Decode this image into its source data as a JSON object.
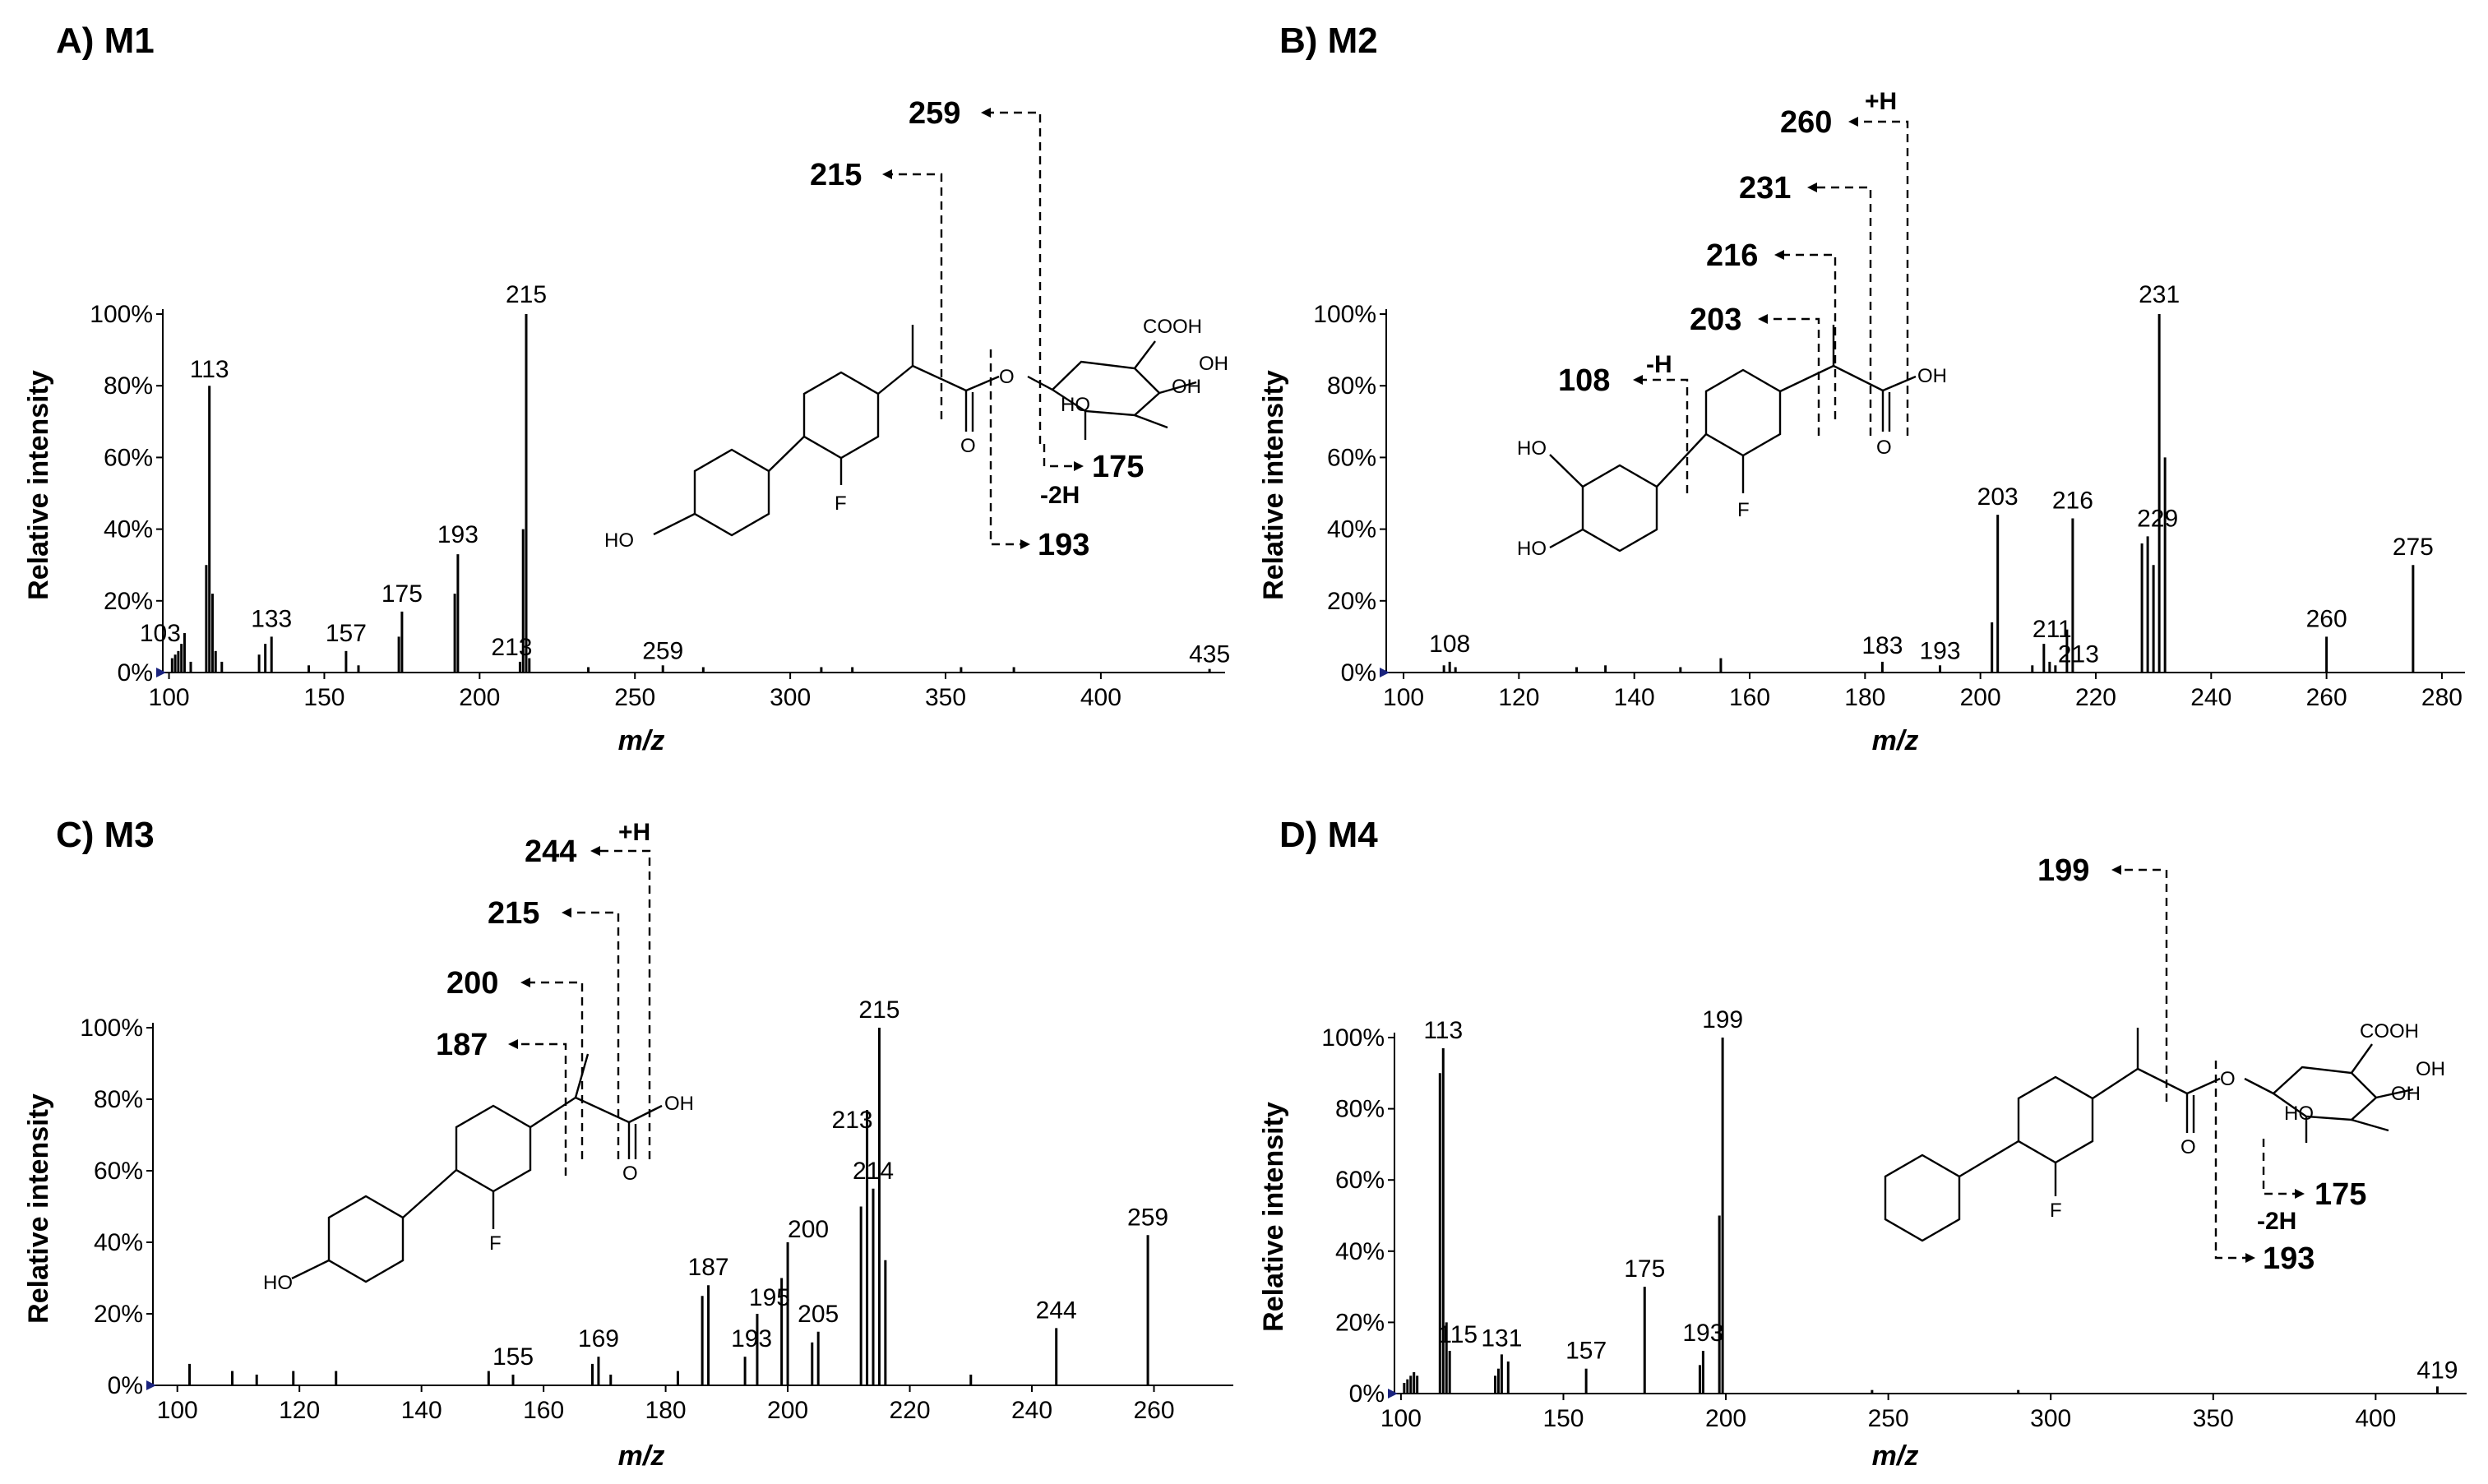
{
  "chart_data": [
    {
      "type": "bar",
      "title": "A) M1",
      "xlabel": "m/z",
      "ylabel": "Relative intensity",
      "xlim": [
        98,
        440
      ],
      "ylim": [
        0,
        100
      ],
      "xticks": [
        100,
        150,
        200,
        250,
        300,
        350,
        400
      ],
      "yticks": [
        "0%",
        "20%",
        "40%",
        "60%",
        "80%",
        "100%"
      ],
      "peaks": [
        {
          "mz": 101,
          "intensity": 4
        },
        {
          "mz": 102,
          "intensity": 5
        },
        {
          "mz": 103,
          "intensity": 6
        },
        {
          "mz": 104,
          "intensity": 8
        },
        {
          "mz": 105,
          "intensity": 11
        },
        {
          "mz": 107,
          "intensity": 3
        },
        {
          "mz": 112,
          "intensity": 30
        },
        {
          "mz": 113,
          "intensity": 80
        },
        {
          "mz": 114,
          "intensity": 22
        },
        {
          "mz": 115,
          "intensity": 6
        },
        {
          "mz": 117,
          "intensity": 3
        },
        {
          "mz": 129,
          "intensity": 5
        },
        {
          "mz": 131,
          "intensity": 8
        },
        {
          "mz": 133,
          "intensity": 10
        },
        {
          "mz": 145,
          "intensity": 2
        },
        {
          "mz": 157,
          "intensity": 6
        },
        {
          "mz": 161,
          "intensity": 2
        },
        {
          "mz": 174,
          "intensity": 10
        },
        {
          "mz": 175,
          "intensity": 17
        },
        {
          "mz": 192,
          "intensity": 22
        },
        {
          "mz": 193,
          "intensity": 33
        },
        {
          "mz": 213,
          "intensity": 3
        },
        {
          "mz": 214,
          "intensity": 40
        },
        {
          "mz": 215,
          "intensity": 100
        },
        {
          "mz": 216,
          "intensity": 4
        },
        {
          "mz": 235,
          "intensity": 1.5
        },
        {
          "mz": 259,
          "intensity": 2
        },
        {
          "mz": 272,
          "intensity": 1.5
        },
        {
          "mz": 310,
          "intensity": 1.5
        },
        {
          "mz": 320,
          "intensity": 1.5
        },
        {
          "mz": 355,
          "intensity": 1.5
        },
        {
          "mz": 372,
          "intensity": 1.5
        },
        {
          "mz": 435,
          "intensity": 1
        }
      ],
      "peak_labels": [
        {
          "text": "113",
          "mz": 113,
          "intensity": 80
        },
        {
          "text": "103",
          "mz": 103,
          "intensity": 6
        },
        {
          "text": "133",
          "mz": 133,
          "intensity": 10
        },
        {
          "text": "157",
          "mz": 157,
          "intensity": 6
        },
        {
          "text": "175",
          "mz": 175,
          "intensity": 17
        },
        {
          "text": "193",
          "mz": 193,
          "intensity": 33
        },
        {
          "text": "213",
          "mz": 213,
          "intensity": 3
        },
        {
          "text": "215",
          "mz": 215,
          "intensity": 100
        },
        {
          "text": "259",
          "mz": 259,
          "intensity": 2
        },
        {
          "text": "435",
          "mz": 435,
          "intensity": 1
        }
      ],
      "fragment_labels": [
        "259",
        "215",
        "175",
        "193"
      ],
      "fragment_notes": [
        "-2H"
      ],
      "structure_labels": [
        "HO",
        "F",
        "O",
        "O",
        "COOH",
        "OH",
        "OH",
        "HO"
      ]
    },
    {
      "type": "bar",
      "title": "B) M2",
      "xlabel": "m/z",
      "ylabel": "Relative intensity",
      "xlim": [
        97,
        284
      ],
      "ylim": [
        0,
        100
      ],
      "xticks": [
        100,
        120,
        140,
        160,
        180,
        200,
        220,
        240,
        260,
        280
      ],
      "yticks": [
        "0%",
        "20%",
        "40%",
        "60%",
        "80%",
        "100%"
      ],
      "peaks": [
        {
          "mz": 107,
          "intensity": 2
        },
        {
          "mz": 108,
          "intensity": 3
        },
        {
          "mz": 109,
          "intensity": 1.5
        },
        {
          "mz": 130,
          "intensity": 1.5
        },
        {
          "mz": 135,
          "intensity": 2
        },
        {
          "mz": 148,
          "intensity": 1.5
        },
        {
          "mz": 155,
          "intensity": 4
        },
        {
          "mz": 183,
          "intensity": 3
        },
        {
          "mz": 193,
          "intensity": 2
        },
        {
          "mz": 202,
          "intensity": 14
        },
        {
          "mz": 203,
          "intensity": 44
        },
        {
          "mz": 209,
          "intensity": 2
        },
        {
          "mz": 211,
          "intensity": 8
        },
        {
          "mz": 212,
          "intensity": 3
        },
        {
          "mz": 213,
          "intensity": 2
        },
        {
          "mz": 215,
          "intensity": 12
        },
        {
          "mz": 216,
          "intensity": 43
        },
        {
          "mz": 228,
          "intensity": 36
        },
        {
          "mz": 229,
          "intensity": 38
        },
        {
          "mz": 230,
          "intensity": 30
        },
        {
          "mz": 231,
          "intensity": 100
        },
        {
          "mz": 232,
          "intensity": 60
        },
        {
          "mz": 260,
          "intensity": 10
        },
        {
          "mz": 275,
          "intensity": 30
        }
      ],
      "peak_labels": [
        {
          "text": "108",
          "mz": 108,
          "intensity": 3
        },
        {
          "text": "183",
          "mz": 183,
          "intensity": 3
        },
        {
          "text": "193",
          "mz": 193,
          "intensity": 2
        },
        {
          "text": "203",
          "mz": 203,
          "intensity": 44
        },
        {
          "text": "211",
          "mz": 211,
          "intensity": 8
        },
        {
          "text": "213",
          "mz": 213,
          "intensity": 2
        },
        {
          "text": "216",
          "mz": 216,
          "intensity": 43
        },
        {
          "text": "229",
          "mz": 229,
          "intensity": 38
        },
        {
          "text": "231",
          "mz": 231,
          "intensity": 100
        },
        {
          "text": "260",
          "mz": 260,
          "intensity": 10
        },
        {
          "text": "275",
          "mz": 275,
          "intensity": 30
        }
      ],
      "fragment_labels": [
        "260",
        "231",
        "216",
        "203",
        "108"
      ],
      "fragment_notes": [
        "+H",
        "-H"
      ],
      "structure_labels": [
        "HO",
        "HO",
        "F",
        "OH",
        "O"
      ]
    },
    {
      "type": "bar",
      "title": "C) M3",
      "xlabel": "m/z",
      "ylabel": "Relative intensity",
      "xlim": [
        96,
        273
      ],
      "ylim": [
        0,
        100
      ],
      "xticks": [
        100,
        120,
        140,
        160,
        180,
        200,
        220,
        240,
        260
      ],
      "yticks": [
        "0%",
        "20%",
        "40%",
        "60%",
        "80%",
        "100%"
      ],
      "peaks": [
        {
          "mz": 102,
          "intensity": 6
        },
        {
          "mz": 109,
          "intensity": 4
        },
        {
          "mz": 113,
          "intensity": 3
        },
        {
          "mz": 119,
          "intensity": 4
        },
        {
          "mz": 126,
          "intensity": 4
        },
        {
          "mz": 151,
          "intensity": 4
        },
        {
          "mz": 155,
          "intensity": 3
        },
        {
          "mz": 168,
          "intensity": 6
        },
        {
          "mz": 169,
          "intensity": 8
        },
        {
          "mz": 171,
          "intensity": 3
        },
        {
          "mz": 182,
          "intensity": 4
        },
        {
          "mz": 186,
          "intensity": 25
        },
        {
          "mz": 187,
          "intensity": 28
        },
        {
          "mz": 193,
          "intensity": 8
        },
        {
          "mz": 195,
          "intensity": 20
        },
        {
          "mz": 199,
          "intensity": 30
        },
        {
          "mz": 200,
          "intensity": 40
        },
        {
          "mz": 204,
          "intensity": 12
        },
        {
          "mz": 205,
          "intensity": 15
        },
        {
          "mz": 212,
          "intensity": 50
        },
        {
          "mz": 213,
          "intensity": 77
        },
        {
          "mz": 214,
          "intensity": 55
        },
        {
          "mz": 215,
          "intensity": 100
        },
        {
          "mz": 216,
          "intensity": 35
        },
        {
          "mz": 230,
          "intensity": 3
        },
        {
          "mz": 244,
          "intensity": 16
        },
        {
          "mz": 259,
          "intensity": 42
        }
      ],
      "peak_labels": [
        {
          "text": "155",
          "mz": 155,
          "intensity": 3
        },
        {
          "text": "169",
          "mz": 169,
          "intensity": 8
        },
        {
          "text": "187",
          "mz": 187,
          "intensity": 28
        },
        {
          "text": "193",
          "mz": 193,
          "intensity": 8
        },
        {
          "text": "195",
          "mz": 195,
          "intensity": 20
        },
        {
          "text": "200",
          "mz": 200,
          "intensity": 40
        },
        {
          "text": "205",
          "mz": 205,
          "intensity": 15
        },
        {
          "text": "213",
          "mz": 213,
          "intensity": 77
        },
        {
          "text": "214",
          "mz": 214,
          "intensity": 55
        },
        {
          "text": "215",
          "mz": 215,
          "intensity": 100
        },
        {
          "text": "244",
          "mz": 244,
          "intensity": 16
        },
        {
          "text": "259",
          "mz": 259,
          "intensity": 42
        }
      ],
      "fragment_labels": [
        "244",
        "215",
        "200",
        "187"
      ],
      "fragment_notes": [
        "+H"
      ],
      "structure_labels": [
        "HO",
        "F",
        "OH",
        "O"
      ]
    },
    {
      "type": "bar",
      "title": "D) M4",
      "xlabel": "m/z",
      "ylabel": "Relative intensity",
      "xlim": [
        98,
        428
      ],
      "ylim": [
        0,
        100
      ],
      "xticks": [
        100,
        150,
        200,
        250,
        300,
        350,
        400
      ],
      "yticks": [
        "0%",
        "20%",
        "40%",
        "60%",
        "80%",
        "100%"
      ],
      "peaks": [
        {
          "mz": 101,
          "intensity": 3
        },
        {
          "mz": 102,
          "intensity": 4
        },
        {
          "mz": 103,
          "intensity": 5
        },
        {
          "mz": 104,
          "intensity": 6
        },
        {
          "mz": 105,
          "intensity": 5
        },
        {
          "mz": 112,
          "intensity": 90
        },
        {
          "mz": 113,
          "intensity": 97
        },
        {
          "mz": 114,
          "intensity": 20
        },
        {
          "mz": 115,
          "intensity": 12
        },
        {
          "mz": 129,
          "intensity": 5
        },
        {
          "mz": 130,
          "intensity": 7
        },
        {
          "mz": 131,
          "intensity": 11
        },
        {
          "mz": 133,
          "intensity": 9
        },
        {
          "mz": 157,
          "intensity": 7
        },
        {
          "mz": 175,
          "intensity": 30
        },
        {
          "mz": 192,
          "intensity": 8
        },
        {
          "mz": 193,
          "intensity": 12
        },
        {
          "mz": 198,
          "intensity": 50
        },
        {
          "mz": 199,
          "intensity": 100
        },
        {
          "mz": 245,
          "intensity": 1
        },
        {
          "mz": 290,
          "intensity": 1
        },
        {
          "mz": 419,
          "intensity": 2
        }
      ],
      "peak_labels": [
        {
          "text": "113",
          "mz": 113,
          "intensity": 97
        },
        {
          "text": "115",
          "mz": 115,
          "intensity": 12
        },
        {
          "text": "131",
          "mz": 131,
          "intensity": 11
        },
        {
          "text": "157",
          "mz": 157,
          "intensity": 7
        },
        {
          "text": "175",
          "mz": 175,
          "intensity": 30
        },
        {
          "text": "193",
          "mz": 193,
          "intensity": 12
        },
        {
          "text": "199",
          "mz": 199,
          "intensity": 100
        },
        {
          "text": "419",
          "mz": 419,
          "intensity": 2
        }
      ],
      "fragment_labels": [
        "199",
        "175",
        "193"
      ],
      "fragment_notes": [
        "-2H"
      ],
      "structure_labels": [
        "F",
        "O",
        "O",
        "COOH",
        "OH",
        "OH",
        "HO"
      ]
    }
  ]
}
